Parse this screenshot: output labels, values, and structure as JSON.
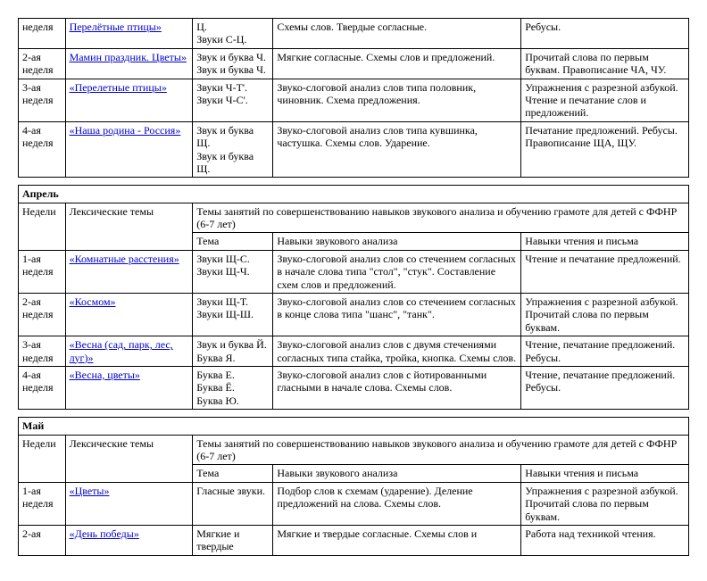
{
  "table1": {
    "rows": [
      {
        "week": "неделя",
        "topic": "Перелётные птицы»",
        "tema": "Ц.\nЗвуки С-Ц.",
        "skills": "Схемы слов. Твердые согласные.",
        "reading": "Ребусы."
      },
      {
        "week": "2-ая неделя",
        "topic": "Мамин праздник. Цветы»",
        "tema": "Звук и буква Ч.\nЗвук и буква Ч.",
        "skills": "Мягкие согласные. Схемы слов и предложений.",
        "reading": "Прочитай слова по первым буквам. Правописание ЧА, ЧУ."
      },
      {
        "week": "3-ая неделя",
        "topic": "«Перелетные птицы»",
        "tema": "Звуки Ч-Т'.\nЗвуки Ч-С'.",
        "skills": "Звуко-слоговой анализ слов типа половник, чиновник. Схема предложения.",
        "reading": "Упражнения с разрезной азбукой. Чтение и печатание слов и предложений."
      },
      {
        "week": "4-ая неделя",
        "topic": "«Наша родина - Россия»",
        "tema": "Звук и буква Щ.\nЗвук и буква Щ.",
        "skills": "Звуко-слоговой анализ слов типа кувшинка, частушка. Схемы слов. Ударение.",
        "reading": "Печатание предложений. Ребусы. Правописание ЩА, ЩУ."
      }
    ]
  },
  "april": {
    "month": "Апрель",
    "header": {
      "week": "Недели",
      "topics": "Лексические темы",
      "main": "Темы занятий по совершенствованию навыков звукового анализа и обучению грамоте для детей с ФФНР (6-7 лет)",
      "tema": "Тема",
      "skills": "Навыки звукового анализа",
      "reading": "Навыки чтения и письма"
    },
    "rows": [
      {
        "week": "1-ая неделя",
        "topic": "«Комнатные расстения»",
        "tema": "Звуки Щ-С.\nЗвуки Щ-Ч.",
        "skills": "Звуко-слоговой анализ слов со стечением согласных в начале слова типа \"стол\", \"стук\". Составление схем слов и предложений.",
        "reading": "Чтение и печатание предложений."
      },
      {
        "week": "2-ая неделя",
        "topic": "«Космом»",
        "tema": "Звуки Щ-Т.\nЗвуки Щ-Ш.",
        "skills": "Звуко-слоговой анализ слов со стечением согласных в конце слова типа \"шанс\", \"танк\".",
        "reading": "Упражнения с разрезной азбукой. Прочитай слова по первым буквам."
      },
      {
        "week": "3-ая неделя",
        "topic": "«Весна (сад, парк, лес, луг)»",
        "tema": "Звук и буква Й.\nБуква Я.",
        "skills": "Звуко-слоговой анализ слов с двумя стечениями согласных типа стайка, тройка, кнопка. Схемы слов.",
        "reading": "Чтение, печатание предложений. Ребусы."
      },
      {
        "week": "4-ая неделя",
        "topic": "«Весна, цветы»",
        "tema": "Буква Е.\nБуква Ё.\nБуква Ю.",
        "skills": "Звуко-слоговой анализ слов с йотированными гласными в начале слова. Схемы слов.",
        "reading": "Чтение, печатание предложений. Ребусы."
      }
    ]
  },
  "may": {
    "month": "Май",
    "header": {
      "week": "Недели",
      "topics": "Лексические темы",
      "main": "Темы занятий по совершенствованию навыков звукового анализа и обучению грамоте для детей с ФФНР (6-7 лет)",
      "tema": "Тема",
      "skills": "Навыки звукового анализа",
      "reading": "Навыки чтения и письма"
    },
    "rows": [
      {
        "week": "1-ая неделя",
        "topic": "«Цветы»",
        "tema": "Гласные звуки.",
        "skills": "Подбор слов к схемам (ударение). Деление предложений на слова. Схемы слов.",
        "reading": "Упражнения с разрезной азбукой. Прочитай слова по первым буквам."
      },
      {
        "week": "2-ая",
        "topic": "«День победы»",
        "tema": "Мягкие и твердые",
        "skills": "Мягкие и твердые согласные. Схемы слов и",
        "reading": "Работа над техникой чтения."
      }
    ]
  }
}
